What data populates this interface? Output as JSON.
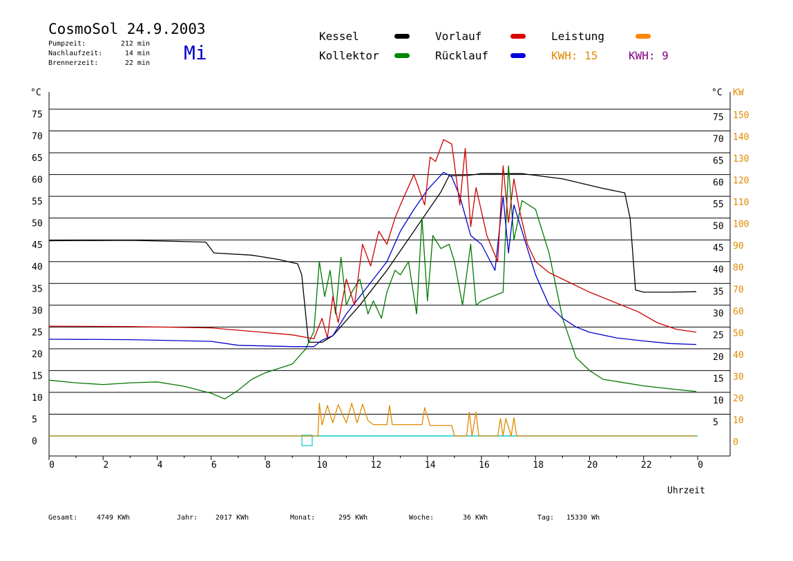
{
  "header": {
    "title": "CosmoSol 24.9.2003",
    "day": "Mi",
    "stats": [
      {
        "label": "Pumpzeit:",
        "value": "212 min"
      },
      {
        "label": "Nachlaufzeit:",
        "value": "14 min"
      },
      {
        "label": "Brennerzeit:",
        "value": "22 min"
      }
    ]
  },
  "legend": [
    {
      "label": "Kessel",
      "color": "#000000"
    },
    {
      "label": "Vorlauf",
      "color": "#dd0000"
    },
    {
      "label": "Leistung",
      "color": "#ff8800"
    },
    {
      "label": "Kollektor",
      "color": "#008800"
    },
    {
      "label": "Rücklauf",
      "color": "#0000dd"
    }
  ],
  "kwh": [
    {
      "label": "KWH: 15",
      "color": "#e08a00"
    },
    {
      "label": "KWH: 9",
      "color": "#800080"
    }
  ],
  "footer": [
    {
      "label": "Gesamt:",
      "value": "4749 KWh"
    },
    {
      "label": "Jahr:",
      "value": "2017 KWh"
    },
    {
      "label": "Monat:",
      "value": "295 KWh"
    },
    {
      "label": "Woche:",
      "value": "36 KWh"
    },
    {
      "label": "Tag:",
      "value": "15330 Wh"
    }
  ],
  "chart_data": {
    "type": "line",
    "xlabel": "Uhrzeit",
    "ylabel_left": "°C",
    "ylabel_right_temp": "°C",
    "ylabel_right_power": "KW",
    "xlim": [
      0,
      24
    ],
    "ylim": [
      0,
      75
    ],
    "x_ticks": [
      "0",
      "2",
      "4",
      "6",
      "8",
      "10",
      "12",
      "14",
      "16",
      "18",
      "20",
      "22",
      "0"
    ],
    "y_ticks_left": [
      "0",
      "5",
      "10",
      "15",
      "20",
      "25",
      "30",
      "35",
      "40",
      "45",
      "50",
      "55",
      "60",
      "65",
      "70",
      "75"
    ],
    "y_ticks_right_temp": [
      "5",
      "10",
      "15",
      "20",
      "25",
      "30",
      "35",
      "40",
      "45",
      "50",
      "55",
      "60",
      "65",
      "70",
      "75"
    ],
    "y_ticks_right_power": [
      "0",
      "10",
      "20",
      "30",
      "40",
      "50",
      "60",
      "70",
      "80",
      "90",
      "100",
      "110",
      "120",
      "130",
      "140",
      "150"
    ],
    "grid": true,
    "series": [
      {
        "name": "Kessel",
        "color": "#000000",
        "x": [
          0,
          3,
          5.8,
          6.1,
          7.5,
          8.5,
          9.2,
          9.35,
          9.6,
          10.1,
          10.5,
          11.5,
          12.5,
          13.5,
          14.5,
          14.8,
          15.5,
          16,
          17.5,
          19,
          20.5,
          21.3,
          21.5,
          21.7,
          22,
          23,
          23.95
        ],
        "y": [
          44.8,
          44.9,
          44.5,
          42,
          41.5,
          40.5,
          39.5,
          37,
          21.5,
          21.5,
          23,
          30,
          38,
          47,
          56,
          59.7,
          59.8,
          60.2,
          60.2,
          59,
          56.8,
          55.8,
          50,
          33.5,
          33,
          33,
          33.1
        ]
      },
      {
        "name": "Vorlauf",
        "color": "#cc0000",
        "x": [
          0,
          3,
          6,
          7.5,
          9,
          9.8,
          10.1,
          10.3,
          10.5,
          10.7,
          11,
          11.3,
          11.6,
          11.9,
          12.2,
          12.5,
          12.8,
          13,
          13.5,
          13.9,
          14.1,
          14.3,
          14.6,
          14.9,
          15.2,
          15.4,
          15.6,
          15.8,
          16.2,
          16.6,
          16.8,
          17,
          17.2,
          17.4,
          17.7,
          18,
          18.5,
          19,
          20,
          21,
          21.8,
          22.5,
          23.2,
          23.95
        ],
        "y": [
          25.2,
          25.1,
          24.8,
          24,
          23.2,
          22.3,
          27,
          22.5,
          32,
          26,
          36,
          30,
          44,
          39,
          47,
          44,
          50,
          53,
          60,
          53,
          64,
          63,
          68,
          67,
          53,
          66,
          48,
          57,
          46,
          40,
          62,
          49,
          59,
          52,
          44,
          40,
          37.5,
          36,
          33,
          30.5,
          28.5,
          26,
          24.5,
          23.8
        ]
      },
      {
        "name": "Kollektor",
        "color": "#007700",
        "x": [
          0,
          1,
          2,
          3,
          4,
          5,
          6,
          6.5,
          7,
          7.5,
          8,
          9,
          9.5,
          9.8,
          10,
          10.2,
          10.4,
          10.6,
          10.8,
          11,
          11.2,
          11.5,
          11.8,
          12,
          12.3,
          12.5,
          12.8,
          13,
          13.3,
          13.6,
          13.8,
          14,
          14.2,
          14.5,
          14.8,
          15,
          15.3,
          15.6,
          15.8,
          16,
          16.4,
          16.8,
          17,
          17.2,
          17.5,
          18,
          18.5,
          19,
          19.5,
          20,
          20.5,
          21,
          22,
          23,
          23.95
        ],
        "y": [
          12.8,
          12.2,
          11.8,
          12.2,
          12.4,
          11.4,
          9.8,
          8.5,
          10.5,
          13,
          14.5,
          16.5,
          20,
          24,
          40,
          32,
          38,
          28,
          41,
          30,
          33,
          36,
          28,
          31,
          27,
          33,
          38,
          37,
          40,
          28,
          50,
          31,
          46,
          43,
          44,
          40,
          30,
          44,
          30,
          31,
          32,
          33,
          62,
          45,
          54,
          52,
          42,
          27,
          18,
          15,
          13,
          12.5,
          11.5,
          10.8,
          10.2
        ]
      },
      {
        "name": "Rücklauf",
        "color": "#0000cc",
        "x": [
          0,
          3,
          6,
          7,
          9,
          9.8,
          10.1,
          10.5,
          11,
          11.5,
          12,
          12.5,
          13,
          13.5,
          14,
          14.3,
          14.6,
          14.9,
          15.2,
          15.6,
          16,
          16.5,
          16.8,
          17,
          17.2,
          17.5,
          18,
          18.5,
          19,
          19.5,
          20,
          21,
          22,
          23,
          23.95
        ],
        "y": [
          22.2,
          22.1,
          21.7,
          20.8,
          20.5,
          20.5,
          22,
          23,
          28,
          32,
          36,
          40,
          47,
          52,
          56.5,
          58.5,
          60.5,
          59.5,
          55,
          46,
          44,
          38,
          55,
          42,
          53,
          47,
          37,
          30,
          27,
          25,
          23.8,
          22.5,
          21.8,
          21.2,
          21
        ]
      },
      {
        "name": "Leistung",
        "color": "#e08a00",
        "x": [
          0,
          9.95,
          10,
          10.1,
          10.3,
          10.5,
          10.7,
          11,
          11.2,
          11.4,
          11.6,
          11.8,
          12,
          12.5,
          12.6,
          12.7,
          13,
          13.5,
          13.8,
          13.9,
          14.1,
          14.5,
          14.9,
          15,
          15.45,
          15.55,
          15.65,
          15.8,
          15.9,
          16.6,
          16.7,
          16.8,
          16.9,
          17.1,
          17.2,
          17.3,
          23.95
        ],
        "y": [
          0,
          0,
          7.5,
          2.5,
          7,
          3,
          7.2,
          3,
          7.5,
          3,
          7.3,
          3.5,
          2.6,
          2.6,
          7,
          2.6,
          2.6,
          2.6,
          2.6,
          6.5,
          2.4,
          2.4,
          2.4,
          0,
          0,
          5.5,
          0,
          5.5,
          0,
          0,
          4,
          0,
          4,
          0,
          4.2,
          0,
          0
        ]
      }
    ]
  }
}
